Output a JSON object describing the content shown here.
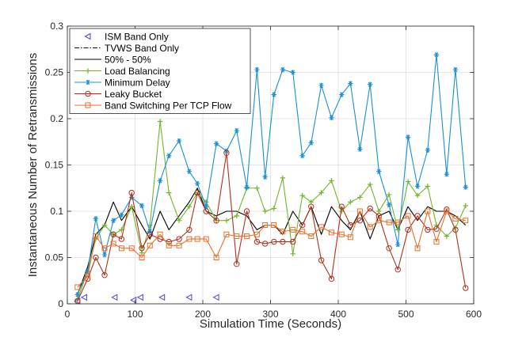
{
  "chart_data": {
    "type": "line",
    "title": "",
    "xlabel": "Simulation Time (Seconds)",
    "ylabel": "Instantaneous Number of Retransmissions",
    "xlim": [
      0,
      600
    ],
    "ylim": [
      0,
      0.3
    ],
    "xticks": [
      0,
      100,
      200,
      300,
      400,
      500,
      600
    ],
    "yticks": [
      0,
      0.05,
      0.1,
      0.15,
      0.2,
      0.25,
      0.3
    ],
    "xtick_labels": [
      "0",
      "100",
      "200",
      "300",
      "400",
      "500",
      "600"
    ],
    "ytick_labels": [
      "0",
      "0.05",
      "0.1",
      "0.15",
      "0.2",
      "0.25",
      "0.3"
    ],
    "grid": true,
    "legend_position": "top-left",
    "series": [
      {
        "name": "ISM Band Only",
        "color": "#4b3fe0",
        "marker": "triangle-left",
        "line": "none",
        "x": [
          15,
          25,
          70,
          98,
          108,
          140,
          180,
          220
        ],
        "y": [
          0.003,
          0.007,
          0.007,
          0.004,
          0.007,
          0.007,
          0.007,
          0.007
        ]
      },
      {
        "name": "TVWS Band Only",
        "color": "#000000",
        "marker": "none",
        "line": "dashdot",
        "x": [],
        "y": []
      },
      {
        "name": "50% - 50%",
        "color": "#000000",
        "marker": "none",
        "line": "solid",
        "x": [
          15,
          30,
          42,
          55,
          68,
          80,
          95,
          110,
          122,
          137,
          150,
          165,
          180,
          192,
          205,
          220,
          235,
          250,
          265,
          280,
          292,
          305,
          318,
          333,
          347,
          360,
          375,
          390,
          405,
          418,
          432,
          447,
          460,
          475,
          488,
          503,
          517,
          532,
          545,
          560,
          573,
          588
        ],
        "y": [
          0.01,
          0.04,
          0.075,
          0.085,
          0.11,
          0.09,
          0.105,
          0.085,
          0.07,
          0.1,
          0.08,
          0.095,
          0.11,
          0.125,
          0.1,
          0.095,
          0.1,
          0.1,
          0.095,
          0.08,
          0.085,
          0.085,
          0.075,
          0.1,
          0.085,
          0.105,
          0.075,
          0.105,
          0.09,
          0.08,
          0.1,
          0.07,
          0.095,
          0.1,
          0.08,
          0.105,
          0.09,
          0.105,
          0.1,
          0.1,
          0.095,
          0.085
        ]
      },
      {
        "name": "Load Balancing",
        "color": "#6fb62c",
        "marker": "plus",
        "line": "solid",
        "x": [
          15,
          30,
          42,
          55,
          68,
          80,
          95,
          110,
          122,
          137,
          150,
          165,
          180,
          192,
          205,
          220,
          235,
          250,
          265,
          280,
          292,
          305,
          318,
          333,
          347,
          360,
          375,
          390,
          405,
          418,
          432,
          447,
          460,
          475,
          488,
          503,
          517,
          532,
          545,
          560,
          573,
          588
        ],
        "y": [
          0.005,
          0.035,
          0.07,
          0.085,
          0.075,
          0.08,
          0.105,
          0.055,
          0.085,
          0.197,
          0.12,
          0.09,
          0.105,
          0.12,
          0.11,
          0.09,
          0.09,
          0.095,
          0.125,
          0.125,
          0.1,
          0.103,
          0.136,
          0.054,
          0.117,
          0.11,
          0.12,
          0.133,
          0.1,
          0.11,
          0.115,
          0.129,
          0.1,
          0.118,
          0.08,
          0.132,
          0.117,
          0.127,
          0.085,
          0.073,
          0.082,
          0.106
        ]
      },
      {
        "name": "Minimum Delay",
        "color": "#1a8fd3",
        "marker": "asterisk",
        "line": "solid",
        "x": [
          15,
          30,
          42,
          55,
          68,
          80,
          95,
          110,
          122,
          137,
          150,
          165,
          180,
          192,
          205,
          220,
          235,
          250,
          265,
          280,
          292,
          305,
          318,
          333,
          347,
          360,
          375,
          390,
          405,
          418,
          432,
          447,
          460,
          475,
          488,
          503,
          517,
          532,
          545,
          560,
          573,
          588
        ],
        "y": [
          0.01,
          0.035,
          0.092,
          0.053,
          0.09,
          0.096,
          0.115,
          0.106,
          0.078,
          0.133,
          0.16,
          0.176,
          0.143,
          0.13,
          0.105,
          0.173,
          0.165,
          0.187,
          0.126,
          0.253,
          0.137,
          0.226,
          0.253,
          0.25,
          0.16,
          0.174,
          0.236,
          0.201,
          0.226,
          0.238,
          0.167,
          0.237,
          0.143,
          0.107,
          0.064,
          0.18,
          0.127,
          0.166,
          0.269,
          0.14,
          0.253,
          0.126
        ]
      },
      {
        "name": "Leaky Bucket",
        "color": "#b0301d",
        "marker": "circle",
        "line": "solid",
        "x": [
          15,
          30,
          42,
          55,
          68,
          80,
          95,
          110,
          122,
          137,
          150,
          165,
          180,
          192,
          205,
          220,
          235,
          250,
          265,
          280,
          292,
          305,
          318,
          333,
          347,
          360,
          375,
          390,
          405,
          418,
          432,
          447,
          460,
          475,
          488,
          503,
          517,
          532,
          545,
          560,
          573,
          588
        ],
        "y": [
          0.003,
          0.027,
          0.05,
          0.031,
          0.075,
          0.07,
          0.12,
          0.06,
          0.075,
          0.07,
          0.067,
          0.07,
          0.08,
          0.12,
          0.1,
          0.09,
          0.163,
          0.043,
          0.1,
          0.067,
          0.065,
          0.067,
          0.067,
          0.067,
          0.085,
          0.105,
          0.047,
          0.027,
          0.105,
          0.085,
          0.09,
          0.103,
          0.095,
          0.06,
          0.037,
          0.08,
          0.095,
          0.08,
          0.081,
          0.102,
          0.08,
          0.017
        ]
      },
      {
        "name": "Band Switching Per TCP Flow",
        "color": "#e8702a",
        "marker": "square",
        "line": "solid",
        "x": [
          15,
          30,
          42,
          55,
          68,
          80,
          95,
          110,
          122,
          137,
          150,
          165,
          180,
          192,
          205,
          220,
          235,
          250,
          265,
          280,
          292,
          305,
          318,
          333,
          347,
          360,
          375,
          390,
          405,
          418,
          432,
          447,
          460,
          475,
          488,
          503,
          517,
          532,
          545,
          560,
          573,
          588
        ],
        "y": [
          0.018,
          0.03,
          0.073,
          0.06,
          0.065,
          0.06,
          0.06,
          0.05,
          0.063,
          0.075,
          0.063,
          0.063,
          0.07,
          0.07,
          0.07,
          0.05,
          0.075,
          0.073,
          0.073,
          0.075,
          0.085,
          0.085,
          0.078,
          0.08,
          0.078,
          0.073,
          0.083,
          0.077,
          0.075,
          0.072,
          0.1,
          0.083,
          0.09,
          0.088,
          0.088,
          0.095,
          0.06,
          0.1,
          0.067,
          0.1,
          0.092,
          0.09
        ]
      }
    ]
  }
}
